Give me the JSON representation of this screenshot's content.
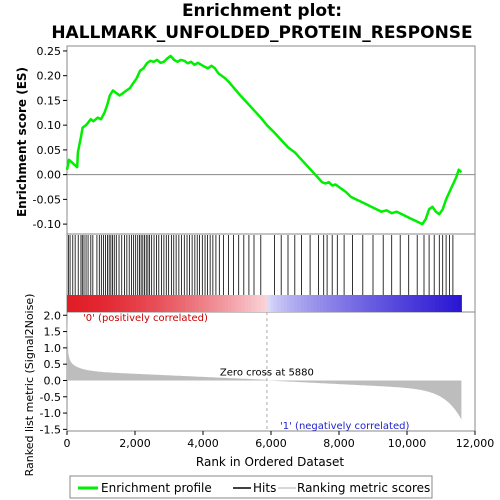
{
  "chart_data": {
    "type": "line",
    "title_line1": "Enrichment plot:",
    "title_line2": "HALLMARK_UNFOLDED_PROTEIN_RESPONSE",
    "top_ylabel": "Enrichment score (ES)",
    "bottom_ylabel_line1": "Ranked list metric (Signal2Noise)",
    "xlabel": "Rank in Ordered Dataset",
    "es_ylim": [
      -0.12,
      0.26
    ],
    "es_yticks": [
      -0.1,
      -0.05,
      0.0,
      0.05,
      0.1,
      0.15,
      0.2,
      0.25
    ],
    "es_ytick_labels": [
      "-0.10",
      "-0.05",
      "0.00",
      "0.05",
      "0.10",
      "0.15",
      "0.20",
      "0.25"
    ],
    "metric_ylim": [
      -1.55,
      2.1
    ],
    "metric_yticks": [
      -1.5,
      -1.0,
      -0.5,
      0.0,
      0.5,
      1.0,
      1.5,
      2.0
    ],
    "metric_ytick_labels": [
      "-1.5",
      "-1.0",
      "-0.5",
      "0.0",
      "0.5",
      "1.0",
      "1.5",
      "2.0"
    ],
    "xlim": [
      0,
      12000
    ],
    "xticks": [
      0,
      2000,
      4000,
      6000,
      8000,
      10000,
      12000
    ],
    "xtick_labels": [
      "0",
      "2,000",
      "4,000",
      "6,000",
      "8,000",
      "10,000",
      "12,000"
    ],
    "n_genes": 11600,
    "zero_cross": 5880,
    "zero_cross_label": "Zero cross at 5880",
    "pos_label": "'0' (positively correlated)",
    "neg_label": "'1' (negatively correlated)",
    "series": [
      {
        "name": "Enrichment profile",
        "color": "#00ee00",
        "x": [
          0,
          60,
          300,
          320,
          420,
          460,
          560,
          620,
          700,
          780,
          900,
          1000,
          1100,
          1180,
          1260,
          1350,
          1450,
          1550,
          1650,
          1750,
          1850,
          1950,
          2050,
          2150,
          2250,
          2350,
          2450,
          2550,
          2650,
          2750,
          2850,
          2950,
          3050,
          3150,
          3250,
          3350,
          3450,
          3550,
          3650,
          3750,
          3850,
          3950,
          4050,
          4150,
          4250,
          4350,
          4450,
          4550,
          4650,
          4750,
          4850,
          4950,
          5100,
          5300,
          5500,
          5700,
          5880,
          6100,
          6300,
          6500,
          6700,
          6900,
          7100,
          7300,
          7500,
          7600,
          7700,
          7800,
          7900,
          8000,
          8100,
          8200,
          8350,
          8500,
          8650,
          8800,
          8950,
          9100,
          9250,
          9400,
          9550,
          9700,
          9850,
          10000,
          10150,
          10300,
          10450,
          10550,
          10650,
          10750,
          10850,
          10950,
          11050,
          11150,
          11250,
          11350,
          11450,
          11520,
          11600
        ],
        "y": [
          0.01,
          0.03,
          0.015,
          0.045,
          0.08,
          0.095,
          0.1,
          0.105,
          0.112,
          0.108,
          0.115,
          0.112,
          0.125,
          0.14,
          0.16,
          0.17,
          0.165,
          0.16,
          0.165,
          0.17,
          0.175,
          0.185,
          0.195,
          0.21,
          0.215,
          0.225,
          0.23,
          0.228,
          0.232,
          0.226,
          0.228,
          0.235,
          0.24,
          0.232,
          0.228,
          0.232,
          0.23,
          0.225,
          0.228,
          0.222,
          0.226,
          0.222,
          0.218,
          0.215,
          0.22,
          0.215,
          0.205,
          0.2,
          0.195,
          0.188,
          0.18,
          0.172,
          0.16,
          0.145,
          0.13,
          0.115,
          0.1,
          0.085,
          0.07,
          0.055,
          0.045,
          0.03,
          0.015,
          0.0,
          -0.015,
          -0.018,
          -0.015,
          -0.022,
          -0.02,
          -0.025,
          -0.03,
          -0.035,
          -0.045,
          -0.05,
          -0.055,
          -0.06,
          -0.065,
          -0.07,
          -0.075,
          -0.072,
          -0.078,
          -0.075,
          -0.08,
          -0.085,
          -0.09,
          -0.095,
          -0.1,
          -0.09,
          -0.07,
          -0.065,
          -0.075,
          -0.08,
          -0.07,
          -0.05,
          -0.035,
          -0.02,
          -0.005,
          0.01,
          0.005
        ]
      }
    ],
    "hits": [
      40,
      90,
      170,
      240,
      330,
      410,
      450,
      500,
      560,
      620,
      700,
      760,
      880,
      950,
      1010,
      1070,
      1130,
      1190,
      1240,
      1290,
      1340,
      1390,
      1450,
      1530,
      1610,
      1690,
      1760,
      1830,
      1900,
      1960,
      2020,
      2080,
      2130,
      2180,
      2230,
      2280,
      2330,
      2380,
      2430,
      2490,
      2560,
      2630,
      2700,
      2780,
      2850,
      2920,
      2990,
      3070,
      3140,
      3210,
      3290,
      3370,
      3450,
      3530,
      3600,
      3680,
      3760,
      3830,
      3900,
      3980,
      4060,
      4130,
      4210,
      4290,
      4380,
      4480,
      4600,
      4750,
      4900,
      5050,
      5200,
      5350,
      5500,
      5700,
      6100,
      6300,
      6500,
      6700,
      6900,
      7150,
      7400,
      7550,
      7650,
      7800,
      7950,
      8150,
      8400,
      8700,
      9000,
      9300,
      9550,
      9800,
      10050,
      10300,
      10500,
      10650,
      10800,
      10950,
      11050,
      11150,
      11250,
      11350
    ],
    "legend": [
      "Enrichment profile",
      "Hits",
      "Ranking metric scores"
    ],
    "legend_placement": "bottom"
  }
}
